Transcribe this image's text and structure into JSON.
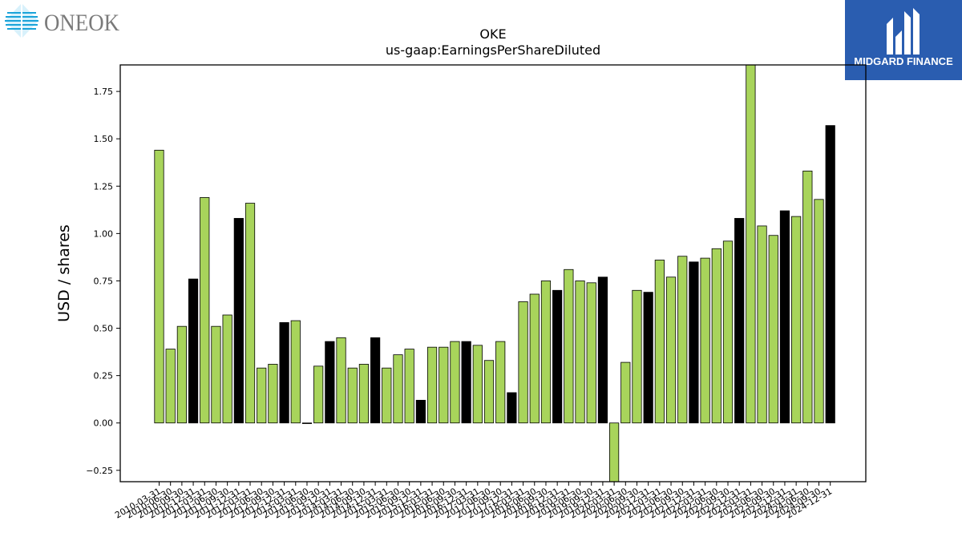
{
  "brand_left": {
    "name": "ONEOK",
    "color": "#1aa3d9",
    "icon": "diamond-stripes-logo-icon"
  },
  "brand_right": {
    "name": "MIDGARD FINANCE",
    "background": "#2a5db0",
    "icon": "m-monogram-logo-icon"
  },
  "chart_data": {
    "type": "bar",
    "title": "OKE",
    "subtitle": "us-gaap:EarningsPerShareDiluted",
    "xlabel": "",
    "ylabel": "USD / shares",
    "ylim": [
      -0.31,
      1.89
    ],
    "yticks": [
      -0.25,
      0.0,
      0.25,
      0.5,
      0.75,
      1.0,
      1.25,
      1.5,
      1.75
    ],
    "grid": false,
    "colors": {
      "quarter": "#a8d45b",
      "annual": "#000000"
    },
    "categories": [
      "2010-03-31",
      "2010-06-30",
      "2010-09-30",
      "2010-12-31",
      "2011-03-31",
      "2011-06-30",
      "2011-09-30",
      "2011-12-31",
      "2012-03-31",
      "2012-06-30",
      "2012-09-30",
      "2012-12-31",
      "2013-03-31",
      "2013-06-30",
      "2013-09-30",
      "2013-12-31",
      "2014-03-31",
      "2014-06-30",
      "2014-09-30",
      "2014-12-31",
      "2015-03-31",
      "2015-06-30",
      "2015-09-30",
      "2015-12-31",
      "2016-03-31",
      "2016-06-30",
      "2016-09-30",
      "2016-12-31",
      "2017-03-31",
      "2017-06-30",
      "2017-09-30",
      "2017-12-31",
      "2018-03-31",
      "2018-06-30",
      "2018-09-30",
      "2018-12-31",
      "2019-03-31",
      "2019-06-30",
      "2019-09-30",
      "2019-12-31",
      "2020-03-31",
      "2020-06-30",
      "2020-09-30",
      "2020-12-31",
      "2021-03-31",
      "2021-06-30",
      "2021-09-30",
      "2021-12-31",
      "2022-03-31",
      "2022-06-30",
      "2022-09-30",
      "2022-12-31",
      "2023-03-31",
      "2023-06-30",
      "2023-09-30",
      "2023-12-31",
      "2024-03-31",
      "2024-06-30",
      "2024-09-30",
      "2024-12-31"
    ],
    "values": [
      1.44,
      0.39,
      0.51,
      0.76,
      1.19,
      0.51,
      0.57,
      1.08,
      1.16,
      0.29,
      0.31,
      0.53,
      0.54,
      0.0,
      0.3,
      0.43,
      0.45,
      0.29,
      0.31,
      0.45,
      0.29,
      0.36,
      0.39,
      0.12,
      0.4,
      0.4,
      0.43,
      0.43,
      0.41,
      0.33,
      0.43,
      0.16,
      0.64,
      0.68,
      0.75,
      0.7,
      0.81,
      0.75,
      0.74,
      0.77,
      -0.31,
      0.32,
      0.7,
      0.69,
      0.86,
      0.77,
      0.88,
      0.85,
      0.87,
      0.92,
      0.96,
      1.08,
      1.89,
      1.04,
      0.99,
      1.12,
      1.09,
      1.33,
      1.18,
      1.57
    ],
    "kinds": [
      "q",
      "q",
      "q",
      "a",
      "q",
      "q",
      "q",
      "a",
      "q",
      "q",
      "q",
      "a",
      "q",
      "q",
      "q",
      "a",
      "q",
      "q",
      "q",
      "a",
      "q",
      "q",
      "q",
      "a",
      "q",
      "q",
      "q",
      "a",
      "q",
      "q",
      "q",
      "a",
      "q",
      "q",
      "q",
      "a",
      "q",
      "q",
      "q",
      "a",
      "q",
      "q",
      "q",
      "a",
      "q",
      "q",
      "q",
      "a",
      "q",
      "q",
      "q",
      "a",
      "q",
      "q",
      "q",
      "a",
      "q",
      "q",
      "q",
      "a"
    ]
  }
}
